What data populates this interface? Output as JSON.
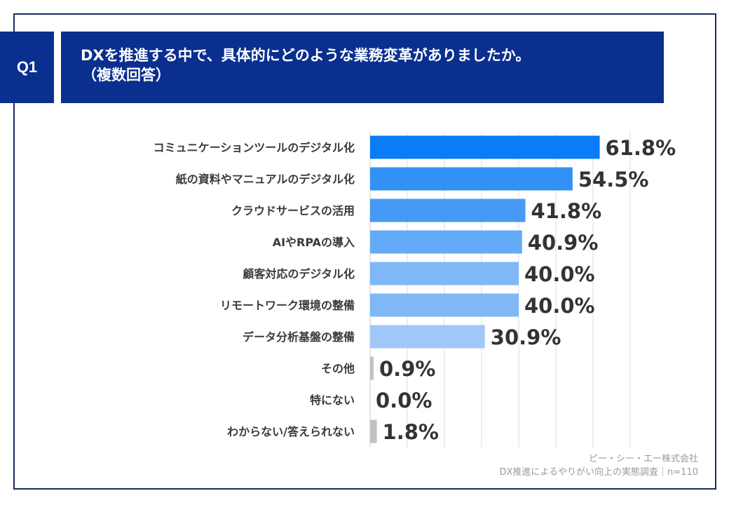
{
  "header": {
    "question_number": "Q1",
    "title_line1": "DXを推進する中で、具体的にどのような業務変革がありましたか。",
    "title_line2": "（複数回答）"
  },
  "source": {
    "company": "ピー・シー・エー株式会社",
    "survey": "DX推進によるやりがい向上の実態調査｜n=110"
  },
  "chart_data": {
    "type": "bar",
    "orientation": "horizontal",
    "categories": [
      "コミュニケーションツールのデジタル化",
      "紙の資料やマニュアルのデジタル化",
      "クラウドサービスの活用",
      "AIやRPAの導入",
      "顧客対応のデジタル化",
      "リモートワーク環境の整備",
      "データ分析基盤の整備",
      "その他",
      "特にない",
      "わからない/答えられない"
    ],
    "values": [
      61.8,
      54.5,
      41.8,
      40.9,
      40.0,
      40.0,
      30.9,
      0.9,
      0.0,
      1.8
    ],
    "data_labels": [
      "61.8%",
      "54.5%",
      "41.8%",
      "40.9%",
      "40.0%",
      "40.0%",
      "30.9%",
      "0.9%",
      "0.0%",
      "1.8%"
    ],
    "colors": [
      "#0a7cf7",
      "#3291f4",
      "#449af5",
      "#64abf7",
      "#80b8f7",
      "#80b8f7",
      "#a0c8f9",
      "#c2c2c6",
      "#c2c2c6",
      "#c2c2c6"
    ],
    "xlim": [
      0,
      70
    ],
    "grid": true,
    "gridline_step": 10,
    "title": "",
    "xlabel": "",
    "ylabel": ""
  }
}
